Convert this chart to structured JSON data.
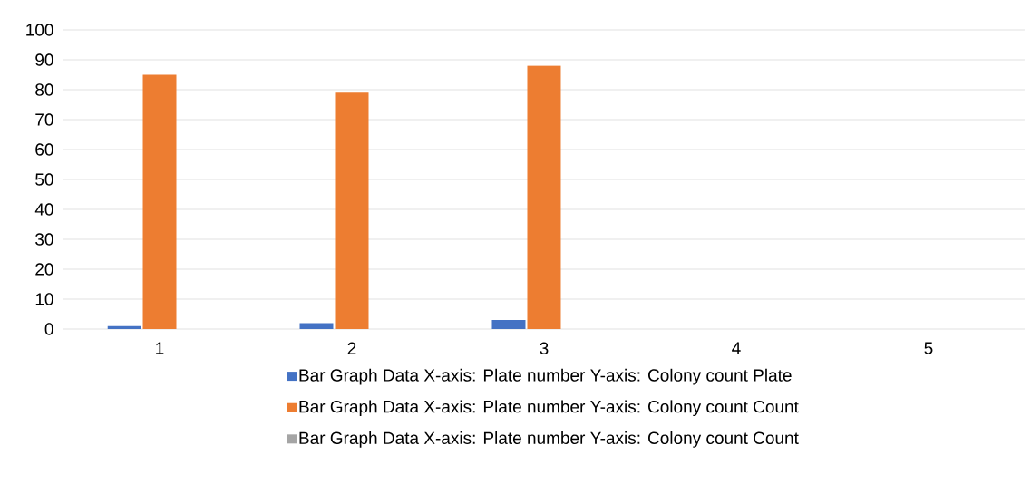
{
  "chart_data": {
    "type": "bar",
    "categories": [
      "1",
      "2",
      "3",
      "4",
      "5"
    ],
    "series": [
      {
        "name": "Bar Graph Data X-axis: Plate number Y-axis: Colony count Plate",
        "color": "#4472c4",
        "values": [
          1,
          2,
          3,
          null,
          null
        ]
      },
      {
        "name": "Bar Graph Data X-axis: Plate number Y-axis: Colony count Count",
        "color": "#ed7d31",
        "values": [
          85,
          79,
          88,
          null,
          null
        ]
      },
      {
        "name": "Bar Graph Data X-axis: Plate number Y-axis: Colony count Count",
        "color": "#a5a5a5",
        "values": [
          null,
          null,
          null,
          null,
          null
        ]
      }
    ],
    "ylim": [
      0,
      100
    ],
    "yticks": [
      0,
      10,
      20,
      30,
      40,
      50,
      60,
      70,
      80,
      90,
      100
    ],
    "grid": "y",
    "legend": "bottom"
  }
}
